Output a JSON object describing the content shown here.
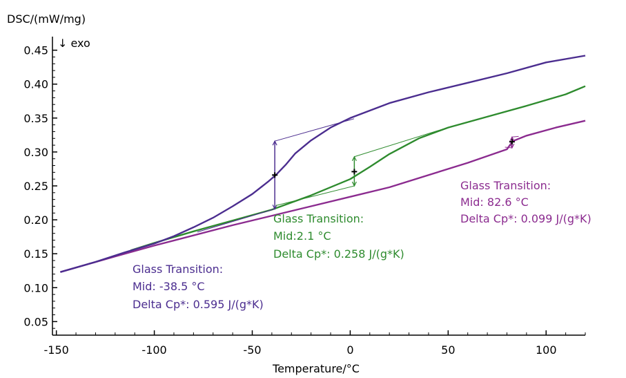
{
  "chart_data": {
    "type": "line",
    "ylabel": "DSC/(mW/mg)",
    "xlabel": "Temperature/°C",
    "direction_note": "↓ exo",
    "xlim": [
      -152,
      120
    ],
    "ylim": [
      0.03,
      0.47
    ],
    "x_ticks": [
      -150,
      -100,
      -50,
      0,
      50,
      100
    ],
    "x_tick_labels": [
      "-150",
      "-100",
      "-50",
      "0",
      "50",
      "100"
    ],
    "y_ticks": [
      0.05,
      0.1,
      0.15,
      0.2,
      0.25,
      0.3,
      0.35,
      0.4,
      0.45
    ],
    "y_tick_labels": [
      "0.05",
      "0.10",
      "0.15",
      "0.20",
      "0.25",
      "0.30",
      "0.35",
      "0.40",
      "0.45"
    ],
    "grid": false,
    "series": [
      {
        "color": "#4b2d8f",
        "points": [
          [
            -148,
            0.123
          ],
          [
            -130,
            0.138
          ],
          [
            -115,
            0.152
          ],
          [
            -100,
            0.165
          ],
          [
            -90,
            0.176
          ],
          [
            -80,
            0.189
          ],
          [
            -70,
            0.203
          ],
          [
            -60,
            0.22
          ],
          [
            -50,
            0.238
          ],
          [
            -42,
            0.256
          ],
          [
            -38,
            0.266
          ],
          [
            -33,
            0.281
          ],
          [
            -28,
            0.298
          ],
          [
            -20,
            0.317
          ],
          [
            -10,
            0.336
          ],
          [
            0,
            0.35
          ],
          [
            20,
            0.372
          ],
          [
            40,
            0.388
          ],
          [
            60,
            0.402
          ],
          [
            80,
            0.416
          ],
          [
            100,
            0.432
          ],
          [
            120,
            0.442
          ]
        ]
      },
      {
        "color": "#2e8b2e",
        "points": [
          [
            -112,
            0.155
          ],
          [
            -100,
            0.166
          ],
          [
            -80,
            0.183
          ],
          [
            -60,
            0.199
          ],
          [
            -40,
            0.215
          ],
          [
            -20,
            0.236
          ],
          [
            0,
            0.26
          ],
          [
            10,
            0.278
          ],
          [
            20,
            0.297
          ],
          [
            35,
            0.32
          ],
          [
            50,
            0.336
          ],
          [
            70,
            0.352
          ],
          [
            90,
            0.368
          ],
          [
            110,
            0.385
          ],
          [
            120,
            0.397
          ]
        ]
      },
      {
        "color": "#8b2b8f",
        "points": [
          [
            -148,
            0.123
          ],
          [
            -120,
            0.146
          ],
          [
            -100,
            0.162
          ],
          [
            -60,
            0.192
          ],
          [
            -20,
            0.22
          ],
          [
            20,
            0.248
          ],
          [
            60,
            0.284
          ],
          [
            80,
            0.304
          ],
          [
            83,
            0.316
          ],
          [
            90,
            0.324
          ],
          [
            105,
            0.336
          ],
          [
            120,
            0.346
          ]
        ]
      }
    ],
    "annotations": [
      {
        "color": "#4b2d8f",
        "lines": [
          "Glass Transition:",
          "Mid: -38.5 °C",
          "Delta Cp*: 0.595 J/(g*K)"
        ],
        "mid_x": -38.5,
        "mid_y": 0.266,
        "step_low": 0.216,
        "step_high": 0.316,
        "onset": [
          -78,
          0.182
        ],
        "end": [
          2,
          0.349
        ]
      },
      {
        "color": "#2e8b2e",
        "lines": [
          "Glass Transition:",
          "Mid:2.1 °C",
          "Delta Cp*: 0.258 J/(g*K)"
        ],
        "mid_x": 2.1,
        "mid_y": 0.271,
        "step_low": 0.25,
        "step_high": 0.293,
        "onset": [
          -38,
          0.221
        ],
        "end": [
          52,
          0.338
        ]
      },
      {
        "color": "#8b2b8f",
        "lines": [
          "Glass Transition:",
          "Mid: 82.6 °C",
          "Delta Cp*: 0.099 J/(g*K)"
        ],
        "mid_x": 82.6,
        "mid_y": 0.315,
        "step_low": 0.306,
        "step_high": 0.322,
        "onset": [
          79,
          0.307
        ],
        "end": [
          86,
          0.323
        ]
      }
    ]
  }
}
